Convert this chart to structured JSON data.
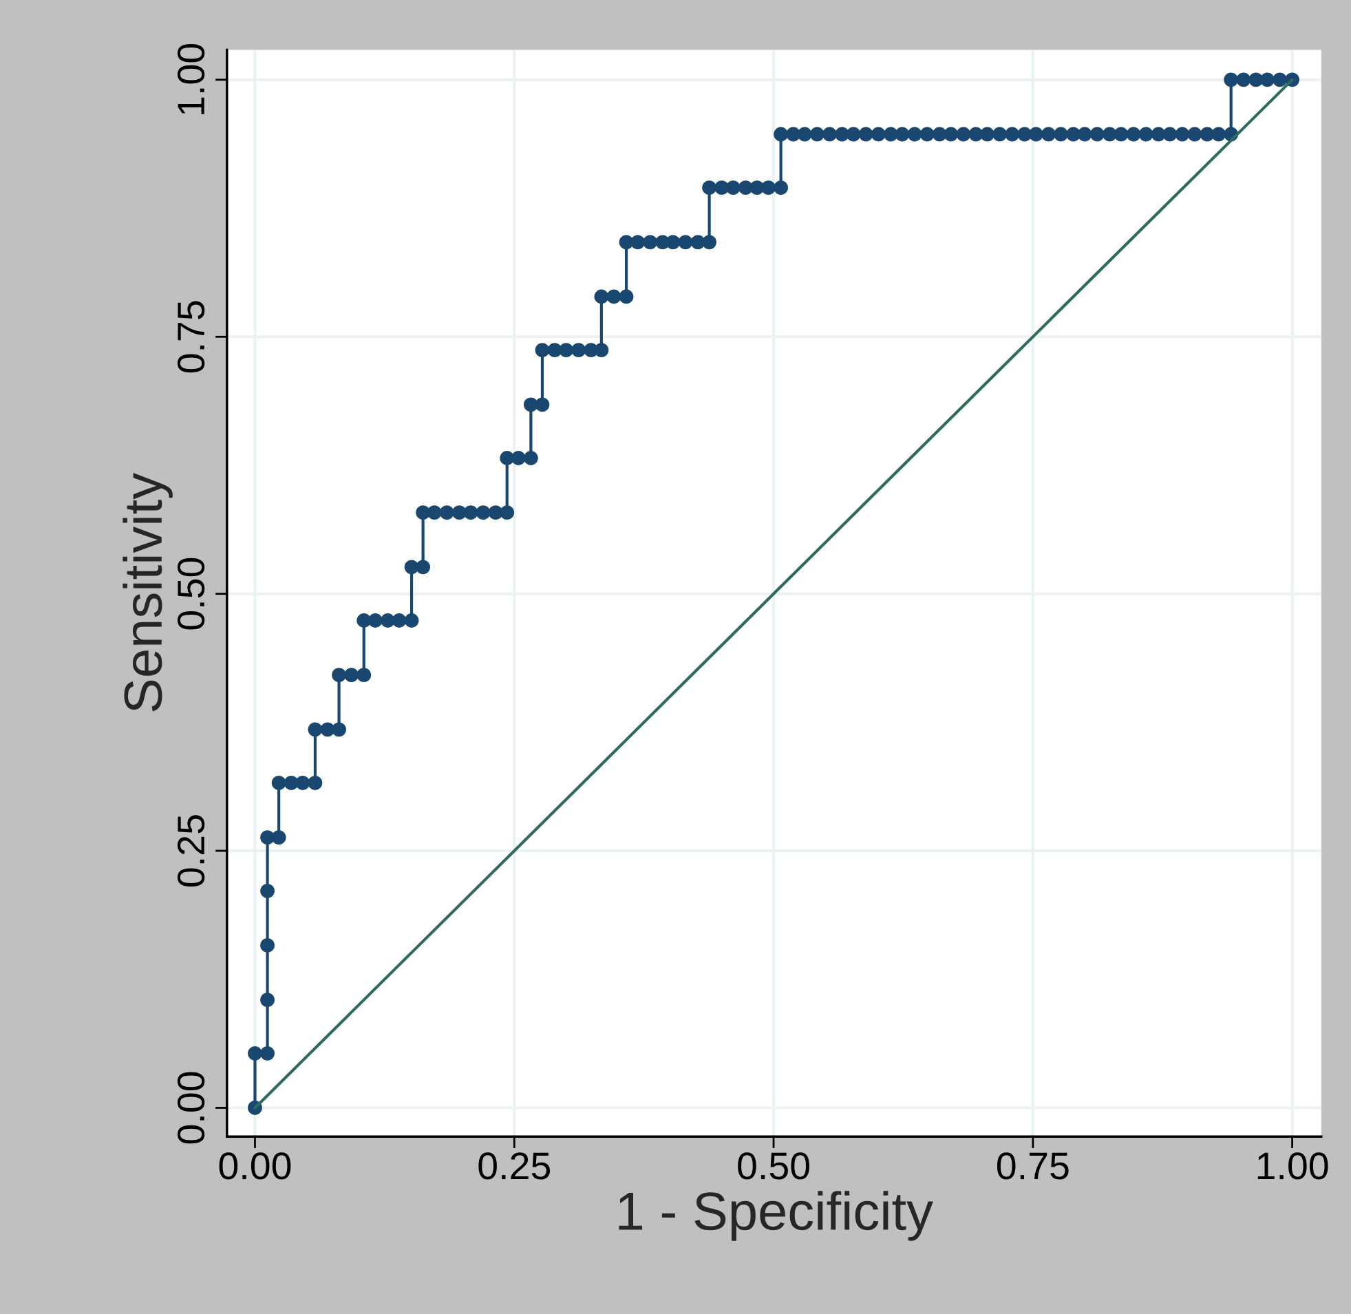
{
  "chart_data": {
    "type": "line",
    "xlabel": "1 - Specificity",
    "ylabel": "Sensitivity",
    "xlim": [
      -0.027,
      1.028
    ],
    "ylim": [
      -0.028,
      1.029
    ],
    "xticks": [
      {
        "value": 0,
        "label": "0.00"
      },
      {
        "value": 0.25,
        "label": "0.25"
      },
      {
        "value": 0.5,
        "label": "0.50"
      },
      {
        "value": 0.75,
        "label": "0.75"
      },
      {
        "value": 1,
        "label": "1.00"
      }
    ],
    "yticks": [
      {
        "value": 0,
        "label": "0.00"
      },
      {
        "value": 0.25,
        "label": "0.25"
      },
      {
        "value": 0.5,
        "label": "0.50"
      },
      {
        "value": 0.75,
        "label": "0.75"
      },
      {
        "value": 1,
        "label": "1.00"
      }
    ],
    "grid": true,
    "legend": false,
    "series": [
      {
        "color": "#1a476f",
        "marker": "circle",
        "line_style": "solid",
        "x": [
          0,
          0,
          0.012,
          0.012,
          0.012,
          0.012,
          0.012,
          0.023,
          0.023,
          0.035,
          0.046,
          0.058,
          0.058,
          0.07,
          0.081,
          0.081,
          0.093,
          0.105,
          0.105,
          0.116,
          0.128,
          0.139,
          0.151,
          0.151,
          0.162,
          0.162,
          0.173,
          0.185,
          0.197,
          0.208,
          0.22,
          0.232,
          0.243,
          0.243,
          0.254,
          0.266,
          0.266,
          0.277,
          0.277,
          0.289,
          0.3,
          0.312,
          0.324,
          0.334,
          0.334,
          0.346,
          0.358,
          0.358,
          0.369,
          0.381,
          0.393,
          0.403,
          0.415,
          0.427,
          0.438,
          0.438,
          0.45,
          0.461,
          0.473,
          0.484,
          0.495,
          0.507,
          0.507,
          0.519,
          0.53,
          0.542,
          0.554,
          0.566,
          0.577,
          0.589,
          0.601,
          0.613,
          0.624,
          0.636,
          0.648,
          0.66,
          0.671,
          0.683,
          0.695,
          0.706,
          0.718,
          0.73,
          0.742,
          0.753,
          0.765,
          0.777,
          0.789,
          0.8,
          0.812,
          0.824,
          0.835,
          0.847,
          0.859,
          0.871,
          0.882,
          0.894,
          0.906,
          0.918,
          0.929,
          0.941,
          0.941,
          0.953,
          0.965,
          0.976,
          0.988,
          1.0
        ],
        "values": [
          0,
          0.053,
          0.053,
          0.105,
          0.158,
          0.211,
          0.263,
          0.263,
          0.316,
          0.316,
          0.316,
          0.316,
          0.368,
          0.368,
          0.368,
          0.421,
          0.421,
          0.421,
          0.474,
          0.474,
          0.474,
          0.474,
          0.474,
          0.526,
          0.526,
          0.579,
          0.579,
          0.579,
          0.579,
          0.579,
          0.579,
          0.579,
          0.579,
          0.632,
          0.632,
          0.632,
          0.684,
          0.684,
          0.737,
          0.737,
          0.737,
          0.737,
          0.737,
          0.737,
          0.789,
          0.789,
          0.789,
          0.842,
          0.842,
          0.842,
          0.842,
          0.842,
          0.842,
          0.842,
          0.842,
          0.895,
          0.895,
          0.895,
          0.895,
          0.895,
          0.895,
          0.895,
          0.947,
          0.947,
          0.947,
          0.947,
          0.947,
          0.947,
          0.947,
          0.947,
          0.947,
          0.947,
          0.947,
          0.947,
          0.947,
          0.947,
          0.947,
          0.947,
          0.947,
          0.947,
          0.947,
          0.947,
          0.947,
          0.947,
          0.947,
          0.947,
          0.947,
          0.947,
          0.947,
          0.947,
          0.947,
          0.947,
          0.947,
          0.947,
          0.947,
          0.947,
          0.947,
          0.947,
          0.947,
          0.947,
          1,
          1,
          1,
          1,
          1,
          1
        ]
      },
      {
        "color": "#2e6b5e",
        "marker": "none",
        "line_style": "solid",
        "x": [
          0,
          1
        ],
        "values": [
          0,
          1
        ]
      }
    ]
  }
}
